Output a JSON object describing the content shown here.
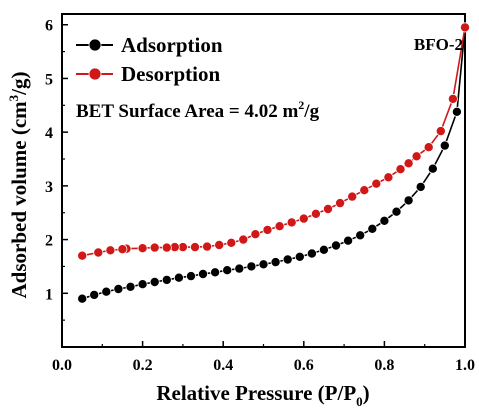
{
  "chart_data": {
    "type": "line",
    "title": "BFO-2",
    "annotation": "BET Surface Area = 4.02 m²/g",
    "annotation_parts": {
      "prefix": "BET Surface Area = 4.02 m",
      "sup": "2",
      "suffix": "/g"
    },
    "xlabel": "Relative Pressure (P/P₀)",
    "xlabel_parts": {
      "prefix": "Relative Pressure (P/P",
      "sub": "0",
      "suffix": ")"
    },
    "ylabel": "Adsorbed volume (cm³/g)",
    "ylabel_parts": {
      "prefix": "Adsorbed volume (cm",
      "sup": "3",
      "suffix": "/g)"
    },
    "xlim": [
      0.0,
      1.0
    ],
    "ylim": [
      0,
      6.2
    ],
    "x_ticks": [
      "0.0",
      "0.2",
      "0.4",
      "0.6",
      "0.8",
      "1.0"
    ],
    "x_tick_values": [
      0.0,
      0.2,
      0.4,
      0.6,
      0.8,
      1.0
    ],
    "y_ticks": [
      "1",
      "2",
      "3",
      "4",
      "5",
      "6"
    ],
    "y_tick_values": [
      1,
      2,
      3,
      4,
      5,
      6
    ],
    "legend_position": "top-left",
    "grid": false,
    "series": [
      {
        "name": "Adsorption",
        "color": "#000000",
        "x": [
          0.05,
          0.08,
          0.11,
          0.14,
          0.17,
          0.2,
          0.23,
          0.26,
          0.29,
          0.32,
          0.35,
          0.38,
          0.41,
          0.44,
          0.47,
          0.5,
          0.53,
          0.56,
          0.59,
          0.62,
          0.65,
          0.68,
          0.71,
          0.74,
          0.77,
          0.8,
          0.83,
          0.86,
          0.89,
          0.92,
          0.95,
          0.98,
          1.0
        ],
        "values": [
          0.9,
          0.97,
          1.03,
          1.08,
          1.12,
          1.17,
          1.21,
          1.25,
          1.29,
          1.32,
          1.36,
          1.39,
          1.43,
          1.46,
          1.5,
          1.54,
          1.58,
          1.63,
          1.68,
          1.74,
          1.81,
          1.89,
          1.98,
          2.08,
          2.2,
          2.35,
          2.52,
          2.73,
          2.98,
          3.32,
          3.75,
          4.38,
          5.95
        ]
      },
      {
        "name": "Desorption",
        "color": "#d01818",
        "x": [
          1.0,
          0.97,
          0.94,
          0.91,
          0.88,
          0.86,
          0.84,
          0.81,
          0.78,
          0.75,
          0.72,
          0.69,
          0.66,
          0.63,
          0.6,
          0.57,
          0.54,
          0.51,
          0.48,
          0.45,
          0.42,
          0.39,
          0.36,
          0.33,
          0.3,
          0.28,
          0.26,
          0.23,
          0.2,
          0.16,
          0.15,
          0.12,
          0.09,
          0.05
        ],
        "values": [
          5.95,
          4.62,
          4.02,
          3.72,
          3.55,
          3.42,
          3.31,
          3.16,
          3.04,
          2.92,
          2.8,
          2.68,
          2.57,
          2.48,
          2.39,
          2.32,
          2.25,
          2.18,
          2.1,
          2.0,
          1.94,
          1.9,
          1.87,
          1.86,
          1.86,
          1.86,
          1.85,
          1.85,
          1.84,
          1.83,
          1.82,
          1.8,
          1.76,
          1.7
        ]
      }
    ]
  }
}
